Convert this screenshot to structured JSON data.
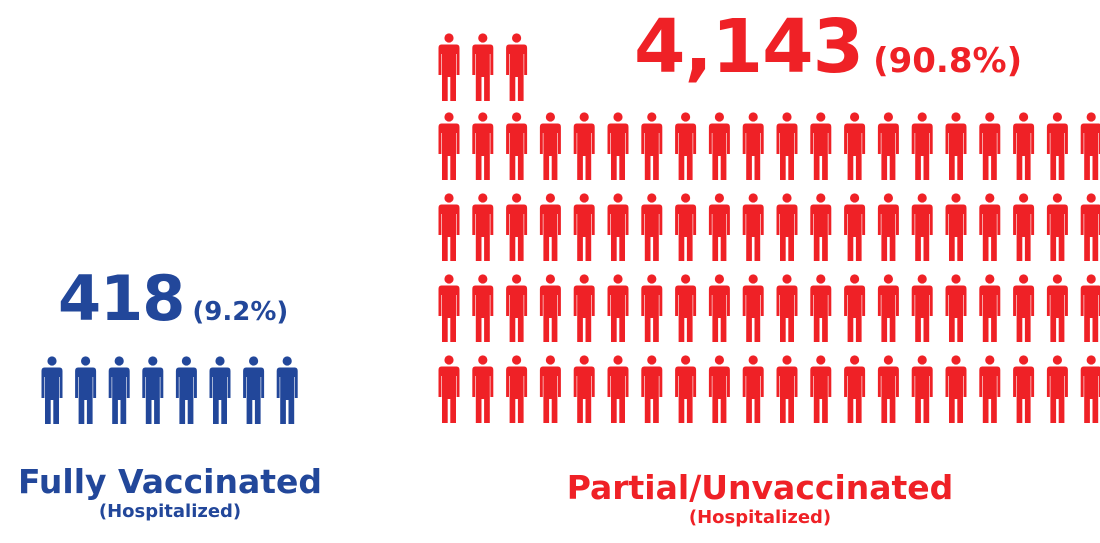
{
  "chart_data": {
    "type": "pictograph",
    "series": [
      {
        "name": "Fully Vaccinated",
        "sublabel": "(Hospitalized)",
        "value": 418,
        "value_label": "418",
        "percent": 9.2,
        "percent_label": "(9.2%)",
        "icon_count": 8,
        "color": "#22479a"
      },
      {
        "name": "Partial/Unvaccinated",
        "sublabel": "(Hospitalized)",
        "value": 4143,
        "value_label": "4,143",
        "percent": 90.8,
        "percent_label": "(90.8%)",
        "icon_count": 83,
        "color": "#ef2126"
      }
    ],
    "icon": "person-icon"
  }
}
